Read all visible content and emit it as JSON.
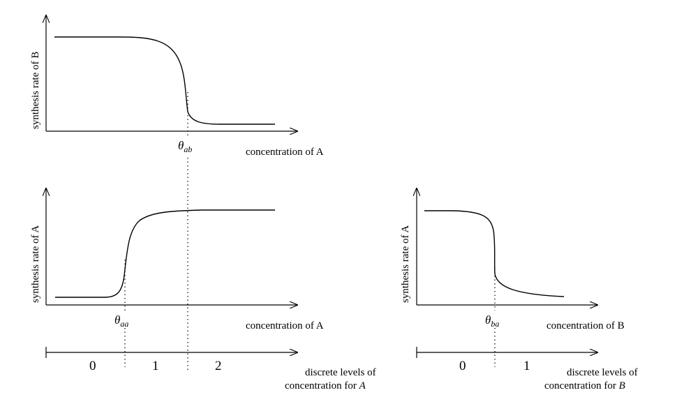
{
  "panels": {
    "top": {
      "ylabel": "synthesis rate of B",
      "xlabel": "concentration of A",
      "threshold": {
        "symbol": "θ",
        "subscript": "ab"
      }
    },
    "middle": {
      "ylabel": "synthesis rate of A",
      "xlabel": "concentration of A",
      "threshold": {
        "symbol": "θ",
        "subscript": "aa"
      }
    },
    "right": {
      "ylabel": "synthesis rate of A",
      "xlabel": "concentration of B",
      "threshold": {
        "symbol": "θ",
        "subscript": "ba"
      }
    }
  },
  "levels_left": {
    "labels": [
      "0",
      "1",
      "2"
    ],
    "caption_line1": "discrete levels of",
    "caption_line2": "concentration for ",
    "caption_var": "A"
  },
  "levels_right": {
    "labels": [
      "0",
      "1"
    ],
    "caption_line1": "discrete levels of",
    "caption_line2": "concentration for ",
    "caption_var": "B"
  }
}
